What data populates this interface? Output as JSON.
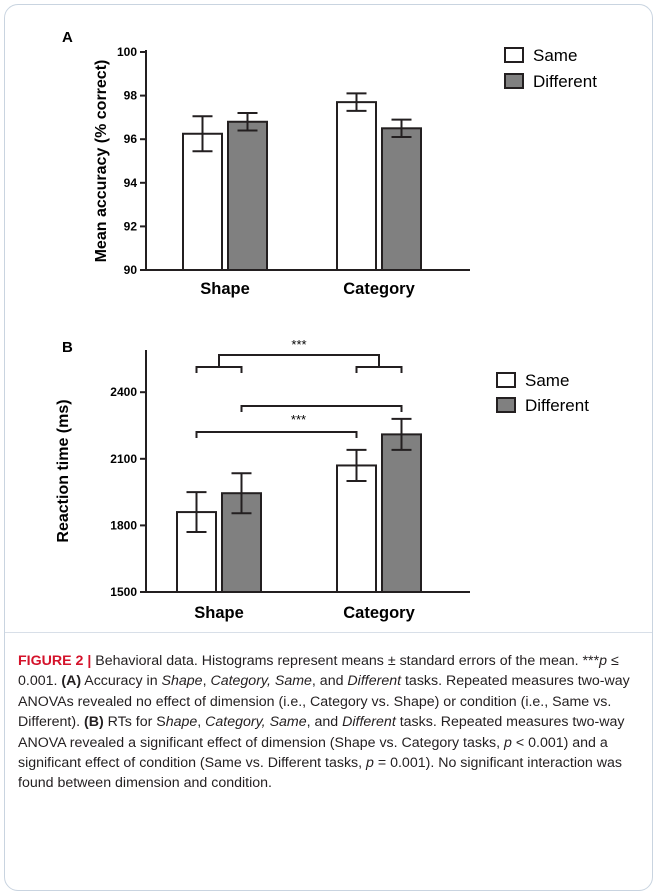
{
  "chart_data": [
    {
      "type": "bar",
      "panel": "A",
      "ylabel": "Mean accuracy (% correct)",
      "xlabel": "",
      "categories": [
        "Shape",
        "Category"
      ],
      "ylim": [
        90,
        100
      ],
      "yticks": [
        90,
        92,
        94,
        96,
        98,
        100
      ],
      "series": [
        {
          "name": "Same",
          "values": [
            96.25,
            97.7
          ],
          "errors": [
            0.8,
            0.4
          ],
          "color": "#ffffff"
        },
        {
          "name": "Different",
          "values": [
            96.8,
            96.5
          ],
          "errors": [
            0.4,
            0.4
          ],
          "color": "#808080"
        }
      ],
      "legend_position": "top-right",
      "grid": false,
      "annotations": []
    },
    {
      "type": "bar",
      "panel": "B",
      "ylabel": "Reaction time (ms)",
      "xlabel": "",
      "categories": [
        "Shape",
        "Category"
      ],
      "ylim": [
        1500,
        2500
      ],
      "yticks": [
        1500,
        1800,
        2100,
        2400
      ],
      "series": [
        {
          "name": "Same",
          "values": [
            1860,
            2070
          ],
          "errors": [
            90,
            70
          ],
          "color": "#ffffff"
        },
        {
          "name": "Different",
          "values": [
            1945,
            2210
          ],
          "errors": [
            90,
            70
          ],
          "color": "#808080"
        }
      ],
      "legend_position": "top-right",
      "grid": false,
      "annotations": [
        {
          "label": "***",
          "type": "significance",
          "compares": "Shape vs. Category"
        },
        {
          "label": "***",
          "type": "significance",
          "compares": "Same vs. Different"
        }
      ]
    }
  ],
  "caption": {
    "figure_label": "FIGURE 2 |",
    "parts": [
      {
        "t": " Behavioral data. Histograms represent means ± standard errors of the mean. ***",
        "s": "n"
      },
      {
        "t": "p",
        "s": "i"
      },
      {
        "t": " ≤ 0.001. ",
        "s": "n"
      },
      {
        "t": "(A)",
        "s": "b"
      },
      {
        "t": " Accuracy in ",
        "s": "n"
      },
      {
        "t": "Shape",
        "s": "i"
      },
      {
        "t": ", ",
        "s": "n"
      },
      {
        "t": "Category, Same",
        "s": "i"
      },
      {
        "t": ", and ",
        "s": "n"
      },
      {
        "t": "Different",
        "s": "i"
      },
      {
        "t": " tasks. Repeated measures two-way ANOVAs revealed no effect of dimension (i.e., Category vs. Shape) or condition (i.e., Same vs. Different). ",
        "s": "n"
      },
      {
        "t": "(B)",
        "s": "b"
      },
      {
        "t": " RTs for S",
        "s": "n"
      },
      {
        "t": "hape",
        "s": "i"
      },
      {
        "t": ", ",
        "s": "n"
      },
      {
        "t": "Category, Same",
        "s": "i"
      },
      {
        "t": ", and ",
        "s": "n"
      },
      {
        "t": "Different",
        "s": "i"
      },
      {
        "t": " tasks. Repeated measures two-way ANOVA revealed a significant effect of dimension (Shape vs. Category tasks, ",
        "s": "n"
      },
      {
        "t": "p",
        "s": "i"
      },
      {
        "t": " < 0.001) and a significant effect of condition (Same vs. Different tasks, ",
        "s": "n"
      },
      {
        "t": "p",
        "s": "i"
      },
      {
        "t": " = 0.001). No significant interaction was found between dimension and condition.",
        "s": "n"
      }
    ]
  }
}
